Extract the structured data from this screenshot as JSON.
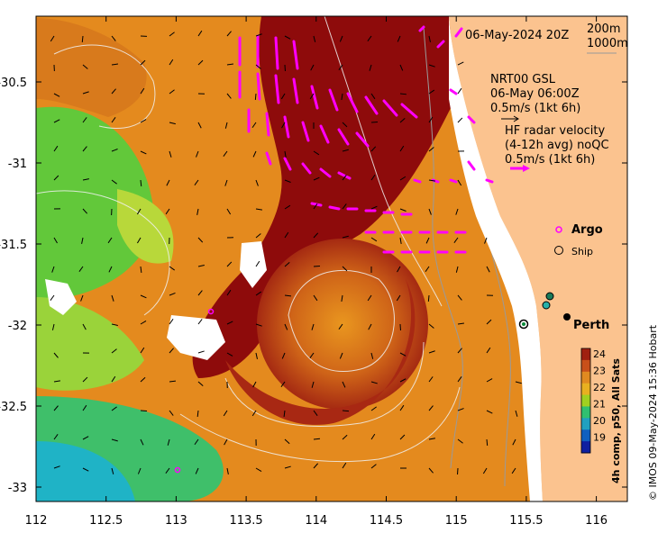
{
  "date_label": "06-May-2024 20Z",
  "bathy_legend": {
    "line1": "200m",
    "line2": "1000m"
  },
  "gsl": {
    "line1": "NRT00 GSL",
    "line2": "06-May 06:00Z",
    "line3": "0.5m/s (1kt 6h)"
  },
  "hf": {
    "line1": "HF radar velocity",
    "line2": "(4-12h avg) noQC",
    "line3": "0.5m/s (1kt 6h)"
  },
  "legend": {
    "argo": "Argo",
    "ship": "Ship"
  },
  "city": "Perth",
  "colorbar": {
    "label": "4h comp, p50, All Sats",
    "ticks": [
      "24",
      "23",
      "22",
      "21",
      "20",
      "19"
    ],
    "colors": [
      "#a02010",
      "#c8501a",
      "#e08a20",
      "#e8b020",
      "#a0d020",
      "#30c070",
      "#20a0c0",
      "#1060c0",
      "#1020a0"
    ]
  },
  "credit": "© IMOS 09-May-2024 15:36 Hobart",
  "x_ticks": [
    "112",
    "112.5",
    "113",
    "113.5",
    "114",
    "114.5",
    "115",
    "115.5",
    "116"
  ],
  "y_ticks": [
    "-30.5",
    "-31",
    "-31.5",
    "-32",
    "-32.5",
    "-33"
  ],
  "colors": {
    "land": "#fbc38f",
    "warm": "#8c0a0a",
    "orange": "#e68a1c",
    "green": "#58c832",
    "cyan": "#20b8c8",
    "argo": "#ff00ff",
    "current": "#ff00ff"
  }
}
